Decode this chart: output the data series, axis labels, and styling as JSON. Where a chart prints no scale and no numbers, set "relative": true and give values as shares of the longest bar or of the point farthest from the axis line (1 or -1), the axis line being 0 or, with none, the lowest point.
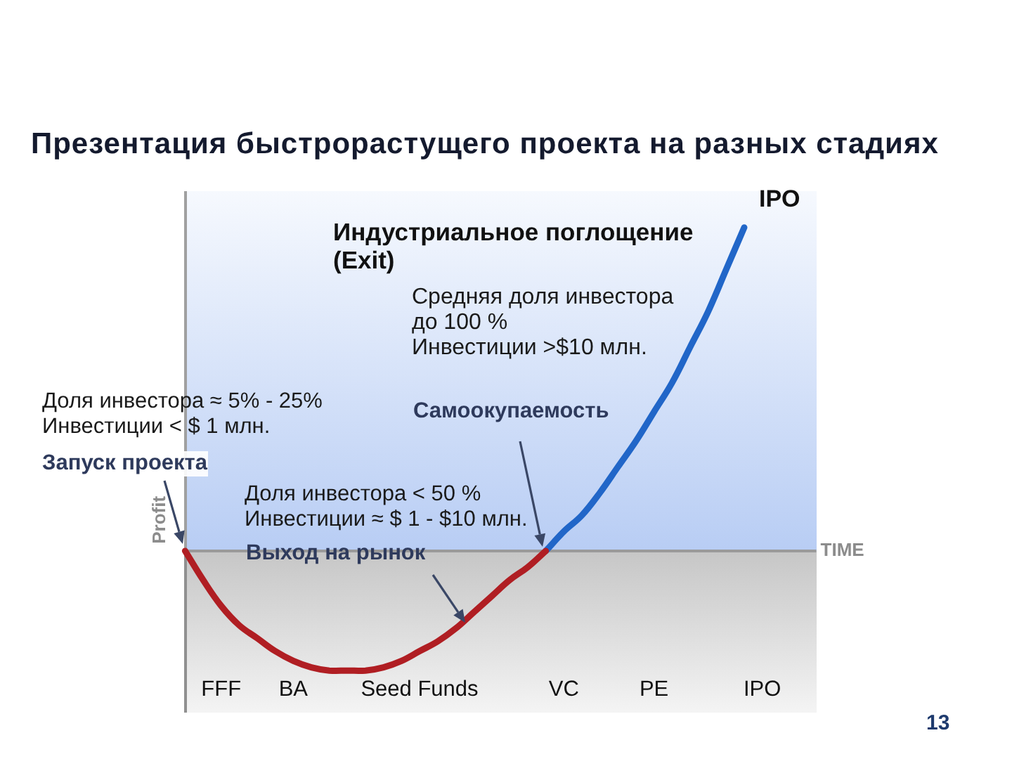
{
  "chart_data": {
    "type": "line",
    "title": "Презентация быстрорастущего проекта на разных стадиях",
    "xlabel": "TIME",
    "ylabel": "Profit",
    "relative": true,
    "categories": [
      null,
      null,
      "FFF",
      null,
      null,
      null,
      "BA",
      null,
      null,
      null,
      null,
      null,
      null,
      "Seed Funds",
      null,
      null,
      null,
      null,
      null,
      null,
      null,
      "VC",
      null,
      null,
      null,
      null,
      "PE",
      null,
      null,
      null,
      null,
      null,
      "IPO",
      null,
      null,
      null
    ],
    "series": [
      {
        "color": "#b01e23",
        "values": [
          0,
          -0.09,
          -0.17,
          -0.23,
          -0.27,
          -0.31,
          -0.34,
          -0.36,
          -0.37,
          -0.37,
          -0.37,
          -0.36,
          -0.34,
          -0.31,
          -0.28,
          -0.24,
          -0.19,
          -0.14,
          -0.09,
          -0.05,
          0,
          null,
          null,
          null,
          null,
          null,
          null,
          null,
          null,
          null,
          null,
          null,
          null,
          null,
          null,
          null
        ]
      },
      {
        "color": "#2166c8",
        "values": [
          null,
          null,
          null,
          null,
          null,
          null,
          null,
          null,
          null,
          null,
          null,
          null,
          null,
          null,
          null,
          null,
          null,
          null,
          null,
          null,
          0,
          0.06,
          0.11,
          0.18,
          0.26,
          0.34,
          0.43,
          0.52,
          0.63,
          0.74,
          0.87,
          1,
          null,
          null,
          null,
          null
        ]
      }
    ],
    "annotations": [
      "IPO",
      "Индустриальное поглощение\n(Exit)",
      "Средняя доля инвестора\nдо 100 %\nИнвестиции >$10 млн.",
      "Доля инвестора ≈ 5% - 25%\nИнвестиции < $ 1 млн.",
      "Запуск проекта",
      "Самоокупаемость",
      "Доля инвестора < 50 %\nИнвестиции ≈ $ 1 - $10 млн.",
      "Выход на рынок",
      "13"
    ],
    "marker": "none",
    "line_style": "solid"
  }
}
